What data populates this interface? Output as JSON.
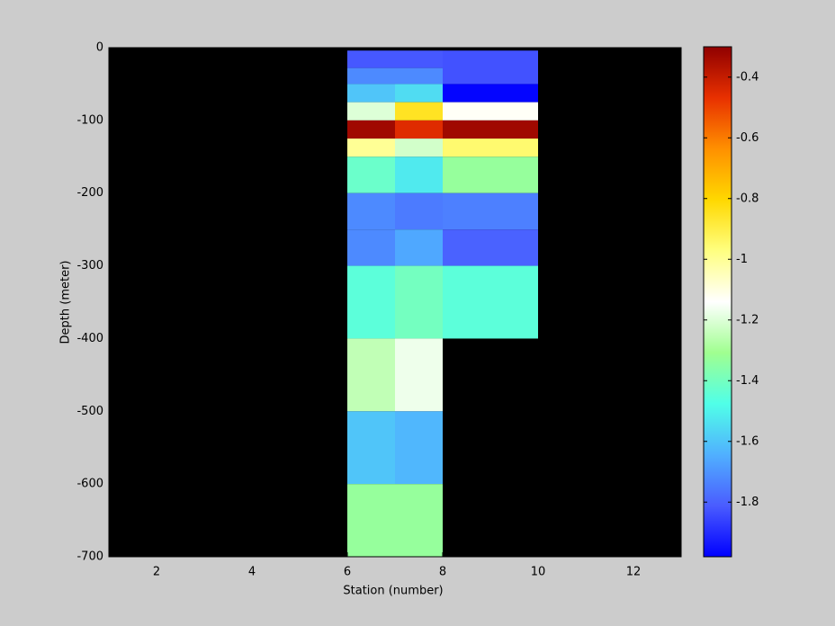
{
  "chart_data": {
    "type": "heatmap",
    "xlabel": "Station (number)",
    "ylabel": "Depth (meter)",
    "xlim": [
      1,
      13
    ],
    "xticks": [
      2,
      4,
      6,
      8,
      10,
      12
    ],
    "ylim": [
      -700,
      0
    ],
    "yticks": [
      0,
      -100,
      -200,
      -300,
      -400,
      -500,
      -600,
      -700
    ],
    "background": "#000000",
    "clim": [
      -1.98,
      -0.3
    ],
    "cticks": [
      -0.4,
      -0.6,
      -0.8,
      -1,
      -1.2,
      -1.4,
      -1.6,
      -1.8
    ],
    "colormap": [
      "#0000ff",
      "#4a5cff",
      "#50b0ff",
      "#50ffe8",
      "#a0ff90",
      "#ffffff",
      "#ffff80",
      "#ffd800",
      "#ff9000",
      "#e83000",
      "#900000"
    ],
    "cells": [
      {
        "x": [
          6,
          7
        ],
        "y": [
          -28,
          -4
        ],
        "value": -1.82
      },
      {
        "x": [
          7,
          8
        ],
        "y": [
          -28,
          -4
        ],
        "value": -1.82
      },
      {
        "x": [
          6,
          7
        ],
        "y": [
          -50,
          -28
        ],
        "value": -1.72
      },
      {
        "x": [
          7,
          8
        ],
        "y": [
          -50,
          -28
        ],
        "value": -1.72
      },
      {
        "x": [
          8,
          10
        ],
        "y": [
          -50,
          -4
        ],
        "value": -1.83
      },
      {
        "x": [
          6,
          7
        ],
        "y": [
          -75,
          -50
        ],
        "value": -1.6
      },
      {
        "x": [
          7,
          8
        ],
        "y": [
          -75,
          -50
        ],
        "value": -1.55
      },
      {
        "x": [
          8,
          10
        ],
        "y": [
          -75,
          -50
        ],
        "value": -1.97
      },
      {
        "x": [
          6,
          7
        ],
        "y": [
          -100,
          -75
        ],
        "value": -1.2
      },
      {
        "x": [
          7,
          8
        ],
        "y": [
          -100,
          -75
        ],
        "value": -0.85
      },
      {
        "x": [
          8,
          10
        ],
        "y": [
          -100,
          -75
        ],
        "value": -1.13
      },
      {
        "x": [
          6,
          7
        ],
        "y": [
          -125,
          -100
        ],
        "value": -0.33
      },
      {
        "x": [
          7,
          8
        ],
        "y": [
          -125,
          -100
        ],
        "value": -0.45
      },
      {
        "x": [
          8,
          10
        ],
        "y": [
          -125,
          -100
        ],
        "value": -0.33
      },
      {
        "x": [
          6,
          7
        ],
        "y": [
          -150,
          -125
        ],
        "value": -1.0
      },
      {
        "x": [
          7,
          8
        ],
        "y": [
          -150,
          -125
        ],
        "value": -1.22
      },
      {
        "x": [
          8,
          10
        ],
        "y": [
          -150,
          -125
        ],
        "value": -0.95
      },
      {
        "x": [
          6,
          7
        ],
        "y": [
          -200,
          -150
        ],
        "value": -1.42
      },
      {
        "x": [
          7,
          8
        ],
        "y": [
          -200,
          -150
        ],
        "value": -1.52
      },
      {
        "x": [
          8,
          10
        ],
        "y": [
          -200,
          -150
        ],
        "value": -1.33
      },
      {
        "x": [
          6,
          7
        ],
        "y": [
          -250,
          -200
        ],
        "value": -1.72
      },
      {
        "x": [
          7,
          8
        ],
        "y": [
          -250,
          -200
        ],
        "value": -1.75
      },
      {
        "x": [
          8,
          10
        ],
        "y": [
          -250,
          -200
        ],
        "value": -1.74
      },
      {
        "x": [
          6,
          7
        ],
        "y": [
          -300,
          -250
        ],
        "value": -1.72
      },
      {
        "x": [
          7,
          8
        ],
        "y": [
          -300,
          -250
        ],
        "value": -1.66
      },
      {
        "x": [
          8,
          10
        ],
        "y": [
          -300,
          -250
        ],
        "value": -1.8
      },
      {
        "x": [
          6,
          7
        ],
        "y": [
          -400,
          -300
        ],
        "value": -1.45
      },
      {
        "x": [
          7,
          8
        ],
        "y": [
          -400,
          -300
        ],
        "value": -1.4
      },
      {
        "x": [
          8,
          10
        ],
        "y": [
          -400,
          -300
        ],
        "value": -1.45
      },
      {
        "x": [
          6,
          7
        ],
        "y": [
          -500,
          -400
        ],
        "value": -1.25
      },
      {
        "x": [
          7,
          8
        ],
        "y": [
          -500,
          -400
        ],
        "value": -1.17
      },
      {
        "x": [
          6,
          7
        ],
        "y": [
          -600,
          -500
        ],
        "value": -1.6
      },
      {
        "x": [
          7,
          8
        ],
        "y": [
          -600,
          -500
        ],
        "value": -1.63
      },
      {
        "x": [
          6,
          8
        ],
        "y": [
          -700,
          -600
        ],
        "value": -1.33
      }
    ]
  }
}
